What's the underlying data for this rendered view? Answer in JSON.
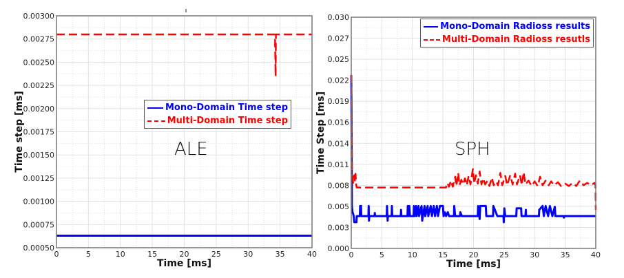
{
  "chart_data": [
    {
      "type": "line",
      "annotation": "ALE",
      "xlabel": "Time [ms]",
      "ylabel": "Time step [ms]",
      "xlim": [
        0,
        40
      ],
      "ylim": [
        0.0005,
        0.003
      ],
      "xticks": [
        "0",
        "5",
        "10",
        "15",
        "20",
        "25",
        "30",
        "35",
        "40"
      ],
      "yticks": [
        "0.00050",
        "0.00075",
        "0.00100",
        "0.00125",
        "0.00150",
        "0.00175",
        "0.00200",
        "0.00225",
        "0.00250",
        "0.00275",
        "0.00300"
      ],
      "grid": true,
      "legend_position": "center-right",
      "series": [
        {
          "name": "Mono-Domain Time step",
          "color": "#0000ff",
          "style": "solid",
          "points": [
            [
              0,
              0.00063
            ],
            [
              40,
              0.00063
            ]
          ]
        },
        {
          "name": "Multi-Domain Time step",
          "color": "#ff0000",
          "style": "dashed",
          "points": [
            [
              0,
              0.0028
            ],
            [
              34.2,
              0.0028
            ],
            [
              34.3,
              0.00235
            ],
            [
              34.35,
              0.0028
            ],
            [
              40,
              0.0028
            ]
          ]
        }
      ]
    },
    {
      "type": "line",
      "annotation": "SPH",
      "xlabel": "Time [ms]",
      "ylabel": "Time Step [ms]",
      "xlim": [
        0,
        40
      ],
      "ylim": [
        0,
        0.03
      ],
      "xticks": [
        "0",
        "5",
        "10",
        "15",
        "20",
        "25",
        "30",
        "35",
        "40"
      ],
      "yticks": [
        "0.000",
        "0.003",
        "0.005",
        "0.008",
        "0.011",
        "0.014",
        "0.016",
        "0.019",
        "0.022",
        "0.025",
        "0.027",
        "0.030"
      ],
      "grid": true,
      "legend_position": "top-right",
      "series": [
        {
          "name": "Mono-Domain Radioss results",
          "color": "#0000ff",
          "style": "solid",
          "points": [
            [
              0,
              0.0225
            ],
            [
              0.05,
              0.0152
            ],
            [
              0.1,
              0.0055
            ],
            [
              0.2,
              0.0047
            ],
            [
              0.3,
              0.0045
            ],
            [
              0.4,
              0.0042
            ],
            [
              0.5,
              0.0034
            ],
            [
              0.85,
              0.0034
            ],
            [
              0.9,
              0.0042
            ],
            [
              1.4,
              0.0042
            ],
            [
              1.45,
              0.0055
            ],
            [
              1.6,
              0.0055
            ],
            [
              1.65,
              0.0042
            ],
            [
              2.8,
              0.0042
            ],
            [
              2.85,
              0.0055
            ],
            [
              2.9,
              0.0036
            ],
            [
              2.95,
              0.0042
            ],
            [
              3.8,
              0.0042
            ],
            [
              3.85,
              0.0046
            ],
            [
              3.9,
              0.0042
            ],
            [
              5.8,
              0.0042
            ],
            [
              5.85,
              0.0055
            ],
            [
              5.95,
              0.0036
            ],
            [
              6.0,
              0.0042
            ],
            [
              6.6,
              0.0042
            ],
            [
              6.65,
              0.0055
            ],
            [
              6.7,
              0.0042
            ],
            [
              8.1,
              0.0042
            ],
            [
              8.15,
              0.005
            ],
            [
              8.2,
              0.0042
            ],
            [
              9.2,
              0.0042
            ],
            [
              9.25,
              0.0055
            ],
            [
              9.35,
              0.0042
            ],
            [
              9.5,
              0.0055
            ],
            [
              9.6,
              0.0042
            ],
            [
              10.2,
              0.0042
            ],
            [
              10.25,
              0.0055
            ],
            [
              10.4,
              0.0042
            ],
            [
              10.6,
              0.0055
            ],
            [
              10.7,
              0.0042
            ],
            [
              11,
              0.0055
            ],
            [
              11.1,
              0.0042
            ],
            [
              11.5,
              0.0055
            ],
            [
              11.6,
              0.0036
            ],
            [
              11.7,
              0.0042
            ],
            [
              12,
              0.0055
            ],
            [
              12.1,
              0.0042
            ],
            [
              12.5,
              0.0055
            ],
            [
              12.6,
              0.0042
            ],
            [
              13,
              0.0055
            ],
            [
              13.2,
              0.0042
            ],
            [
              13.5,
              0.0055
            ],
            [
              13.7,
              0.0042
            ],
            [
              14,
              0.0055
            ],
            [
              14.2,
              0.0042
            ],
            [
              14.5,
              0.0055
            ],
            [
              15,
              0.0055
            ],
            [
              15.1,
              0.0042
            ],
            [
              15.3,
              0.0047
            ],
            [
              15.5,
              0.0042
            ],
            [
              15.8,
              0.0047
            ],
            [
              16,
              0.0042
            ],
            [
              16.8,
              0.0042
            ],
            [
              16.85,
              0.0055
            ],
            [
              17,
              0.0042
            ],
            [
              17.8,
              0.0042
            ],
            [
              17.85,
              0.0047
            ],
            [
              18.1,
              0.0042
            ],
            [
              20.7,
              0.0042
            ],
            [
              20.75,
              0.0055
            ],
            [
              21,
              0.0038
            ],
            [
              21.1,
              0.0055
            ],
            [
              22,
              0.0055
            ],
            [
              22.1,
              0.0042
            ],
            [
              23.2,
              0.0042
            ],
            [
              23.25,
              0.0055
            ],
            [
              23.9,
              0.0042
            ],
            [
              24.9,
              0.0042
            ],
            [
              24.95,
              0.0034
            ],
            [
              25.05,
              0.0052
            ],
            [
              25.2,
              0.0042
            ],
            [
              27,
              0.0042
            ],
            [
              27.05,
              0.0052
            ],
            [
              27.8,
              0.0052
            ],
            [
              27.85,
              0.0042
            ],
            [
              28.5,
              0.0042
            ],
            [
              28.55,
              0.005
            ],
            [
              28.6,
              0.0042
            ],
            [
              30.7,
              0.0042
            ],
            [
              30.75,
              0.005
            ],
            [
              31.3,
              0.0055
            ],
            [
              31.5,
              0.0042
            ],
            [
              31.8,
              0.0055
            ],
            [
              32.2,
              0.0042
            ],
            [
              32.5,
              0.0055
            ],
            [
              32.9,
              0.0042
            ],
            [
              33.3,
              0.0054
            ],
            [
              33.4,
              0.0042
            ],
            [
              34.7,
              0.0042
            ],
            [
              34.8,
              0.004
            ],
            [
              34.9,
              0.0042
            ],
            [
              40,
              0.0042
            ]
          ]
        },
        {
          "name": "Multi-Domain Radioss resutls",
          "color": "#ff0000",
          "style": "dashed",
          "points": [
            [
              0,
              0.0225
            ],
            [
              0.08,
              0.0175
            ],
            [
              0.12,
              0.009
            ],
            [
              0.2,
              0.0097
            ],
            [
              0.3,
              0.0085
            ],
            [
              0.5,
              0.0095
            ],
            [
              0.6,
              0.0088
            ],
            [
              0.7,
              0.0097
            ],
            [
              0.8,
              0.0083
            ],
            [
              0.9,
              0.0079
            ],
            [
              15.5,
              0.0079
            ],
            [
              15.7,
              0.0085
            ],
            [
              16,
              0.008
            ],
            [
              16.3,
              0.0088
            ],
            [
              16.6,
              0.008
            ],
            [
              17,
              0.0093
            ],
            [
              17.2,
              0.0081
            ],
            [
              17.5,
              0.0098
            ],
            [
              17.7,
              0.0082
            ],
            [
              18,
              0.0089
            ],
            [
              18.3,
              0.0083
            ],
            [
              18.6,
              0.0091
            ],
            [
              18.9,
              0.0082
            ],
            [
              19.2,
              0.0094
            ],
            [
              19.5,
              0.0083
            ],
            [
              19.9,
              0.0103
            ],
            [
              20.1,
              0.0084
            ],
            [
              20.4,
              0.0095
            ],
            [
              20.7,
              0.0084
            ],
            [
              21,
              0.01
            ],
            [
              21.3,
              0.0083
            ],
            [
              21.6,
              0.0091
            ],
            [
              21.9,
              0.0083
            ],
            [
              22.3,
              0.0088
            ],
            [
              22.6,
              0.0081
            ],
            [
              23,
              0.0092
            ],
            [
              23.3,
              0.0082
            ],
            [
              23.7,
              0.0087
            ],
            [
              24,
              0.0082
            ],
            [
              24.4,
              0.0098
            ],
            [
              24.7,
              0.0082
            ],
            [
              25.2,
              0.0094
            ],
            [
              25.5,
              0.0082
            ],
            [
              26,
              0.0095
            ],
            [
              26.4,
              0.0083
            ],
            [
              26.8,
              0.0097
            ],
            [
              27.1,
              0.0083
            ],
            [
              27.6,
              0.0095
            ],
            [
              27.9,
              0.0082
            ],
            [
              28.2,
              0.0099
            ],
            [
              28.5,
              0.0083
            ],
            [
              29,
              0.0088
            ],
            [
              29.5,
              0.0081
            ],
            [
              30,
              0.0087
            ],
            [
              30.5,
              0.0081
            ],
            [
              30.9,
              0.0093
            ],
            [
              31.3,
              0.0082
            ],
            [
              31.8,
              0.0088
            ],
            [
              32.3,
              0.0082
            ],
            [
              32.7,
              0.0087
            ],
            [
              33.2,
              0.0082
            ],
            [
              33.8,
              0.0086
            ],
            [
              34.3,
              0.0081
            ],
            [
              35,
              0.0084
            ],
            [
              35.6,
              0.0081
            ],
            [
              36.2,
              0.0085
            ],
            [
              36.8,
              0.0081
            ],
            [
              37.4,
              0.0088
            ],
            [
              38,
              0.0082
            ],
            [
              38.6,
              0.0085
            ],
            [
              39.2,
              0.0082
            ],
            [
              39.8,
              0.0085
            ],
            [
              39.95,
              0.0082
            ],
            [
              40,
              0.005
            ]
          ]
        }
      ]
    }
  ]
}
